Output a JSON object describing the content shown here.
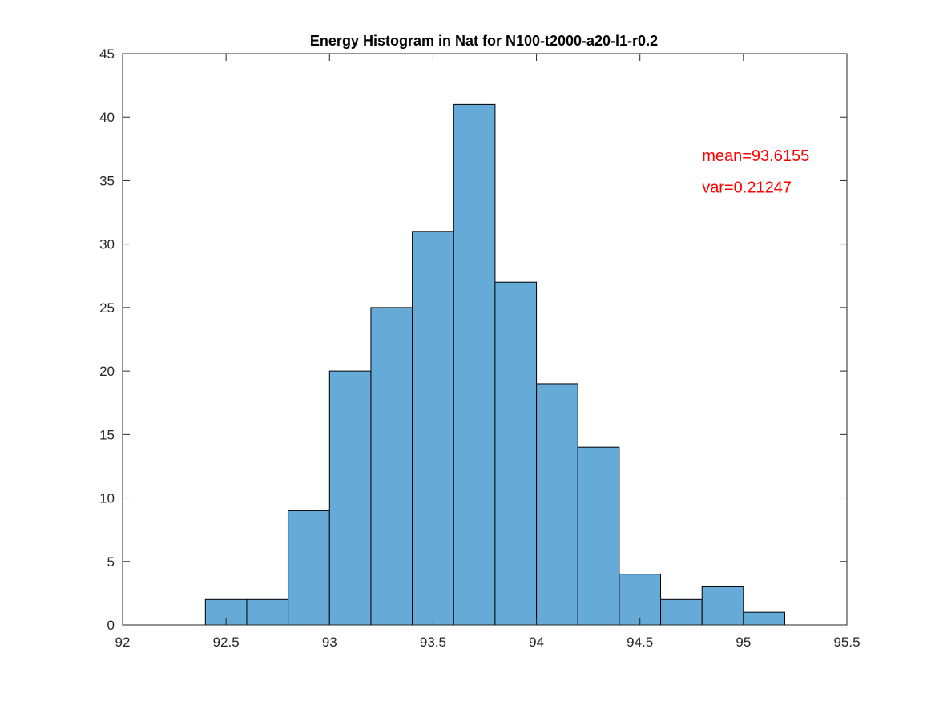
{
  "chart_data": {
    "type": "bar",
    "title": "Energy Histogram in Nat for N100-t2000-a20-l1-r0.2",
    "xlabel": "",
    "ylabel": "",
    "xlim": [
      92,
      95.5
    ],
    "ylim": [
      0,
      45
    ],
    "bin_width": 0.2,
    "bins": [
      {
        "start": 92.4,
        "end": 92.6,
        "count": 2
      },
      {
        "start": 92.6,
        "end": 92.8,
        "count": 2
      },
      {
        "start": 92.8,
        "end": 93.0,
        "count": 9
      },
      {
        "start": 93.0,
        "end": 93.2,
        "count": 20
      },
      {
        "start": 93.2,
        "end": 93.4,
        "count": 25
      },
      {
        "start": 93.4,
        "end": 93.6,
        "count": 31
      },
      {
        "start": 93.6,
        "end": 93.8,
        "count": 41
      },
      {
        "start": 93.8,
        "end": 94.0,
        "count": 27
      },
      {
        "start": 94.0,
        "end": 94.2,
        "count": 19
      },
      {
        "start": 94.2,
        "end": 94.4,
        "count": 14
      },
      {
        "start": 94.4,
        "end": 94.6,
        "count": 4
      },
      {
        "start": 94.6,
        "end": 94.8,
        "count": 2
      },
      {
        "start": 94.8,
        "end": 95.0,
        "count": 3
      },
      {
        "start": 95.0,
        "end": 95.2,
        "count": 1
      }
    ],
    "x_ticks": [
      92,
      92.5,
      93,
      93.5,
      94,
      94.5,
      95,
      95.5
    ],
    "x_tick_labels": [
      "92",
      "92.5",
      "93",
      "93.5",
      "94",
      "94.5",
      "95",
      "95.5"
    ],
    "y_ticks": [
      0,
      5,
      10,
      15,
      20,
      25,
      30,
      35,
      40,
      45
    ],
    "y_tick_labels": [
      "0",
      "5",
      "10",
      "15",
      "20",
      "25",
      "30",
      "35",
      "40",
      "45"
    ],
    "grid": false,
    "bar_color": "#66aad8",
    "edge_color": "#000000",
    "annotations": [
      {
        "text": "mean=93.6155",
        "x": 94.8,
        "y": 37,
        "color": "#ff0000"
      },
      {
        "text": "var=0.21247",
        "x": 94.8,
        "y": 34.5,
        "color": "#ff0000"
      }
    ]
  }
}
